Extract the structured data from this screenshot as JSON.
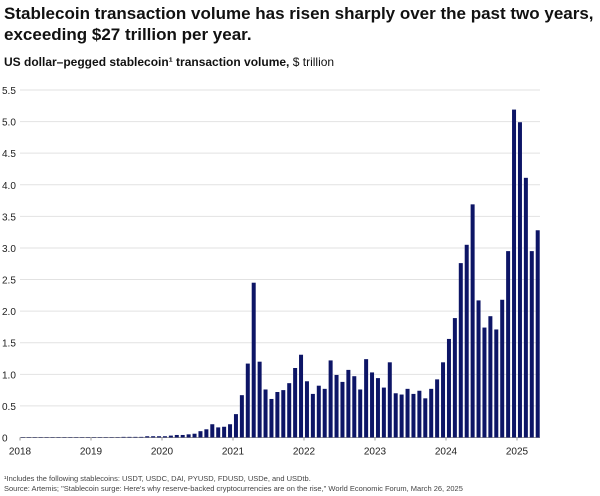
{
  "title": "Stablecoin transaction volume has risen sharply over the past two years, exceeding $27 trillion per year.",
  "subtitle_bold": "US dollar–pegged stablecoin¹ transaction volume,",
  "subtitle_unit": " $ trillion",
  "footnote": "¹Includes the following stablecoins: USDT, USDC, DAI, PYUSD, FDUSD, USDe, and USDtb.",
  "source": "Source: Artemis; \"Stablecoin surge: Here's why reserve-backed cryptocurrencies are on the rise,\" World Economic Forum, March 26, 2025",
  "chart_data": {
    "type": "bar",
    "title": "US dollar–pegged stablecoin transaction volume",
    "ylabel": "$ trillion",
    "xlabel": "",
    "ylim": [
      0,
      5.5
    ],
    "yticks": [
      "0",
      "0.5",
      "1.0",
      "1.5",
      "2.0",
      "2.5",
      "3.0",
      "3.5",
      "4.0",
      "4.5",
      "5.0",
      "5.5"
    ],
    "xticks": [
      "2018",
      "2019",
      "2020",
      "2021",
      "2022",
      "2023",
      "2024",
      "2025"
    ],
    "start": "2018-01",
    "frequency": "monthly",
    "bar_color": "#0d1566",
    "grid": true,
    "values": [
      0,
      0,
      0,
      0,
      0,
      0,
      0,
      0,
      0,
      0,
      0,
      0,
      0,
      0,
      0,
      0,
      0,
      0.01,
      0.01,
      0.01,
      0.01,
      0.02,
      0.02,
      0.02,
      0.02,
      0.03,
      0.04,
      0.04,
      0.05,
      0.06,
      0.1,
      0.13,
      0.21,
      0.16,
      0.17,
      0.21,
      0.37,
      0.67,
      1.17,
      2.45,
      1.2,
      0.76,
      0.61,
      0.72,
      0.75,
      0.86,
      1.1,
      1.31,
      0.89,
      0.69,
      0.82,
      0.77,
      1.22,
      0.99,
      0.88,
      1.07,
      0.97,
      0.76,
      1.24,
      1.03,
      0.94,
      0.79,
      1.19,
      0.7,
      0.68,
      0.77,
      0.69,
      0.74,
      0.62,
      0.77,
      0.92,
      1.19,
      1.56,
      1.89,
      2.76,
      3.05,
      3.69,
      2.17,
      1.74,
      1.92,
      1.71,
      2.18,
      2.95,
      5.19,
      4.99,
      4.11,
      2.95,
      3.28
    ]
  }
}
